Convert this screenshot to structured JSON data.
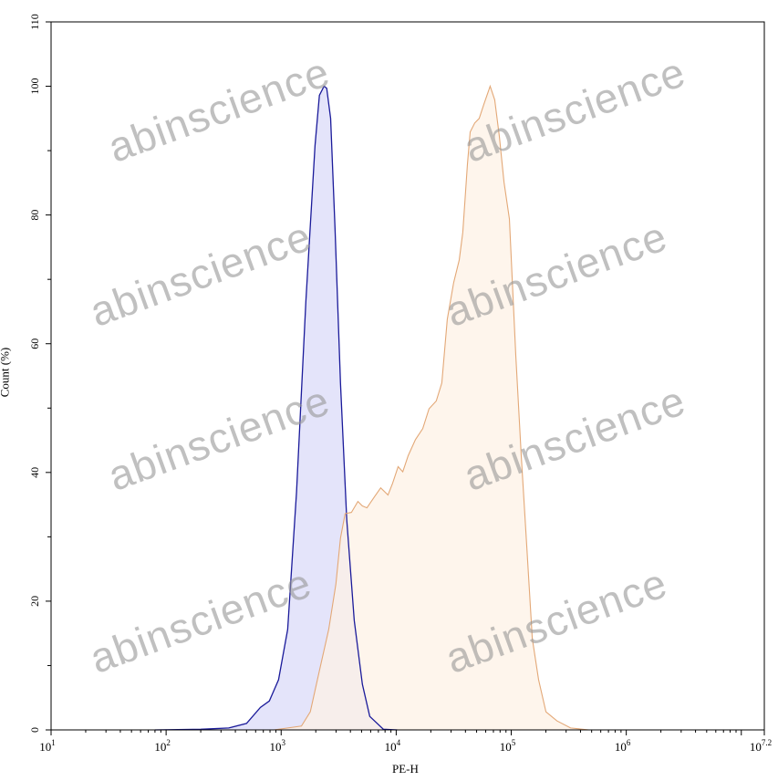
{
  "chart_data": {
    "type": "area",
    "xlabel": "PE-H",
    "ylabel": "Count (%)",
    "xscale": "log",
    "xlim": [
      10,
      15848932
    ],
    "ylim": [
      0,
      110
    ],
    "x_tick_base": "10",
    "x_tick_exponents": [
      "1",
      "2",
      "3",
      "4",
      "5",
      "6",
      "7.2"
    ],
    "y_ticks": [
      "0",
      "20",
      "40",
      "60",
      "80",
      "100",
      "110"
    ],
    "grid": false,
    "legend": "none",
    "series": [
      {
        "color": "#1a1a9a",
        "fill": "#e4e4fa",
        "x": [
          80,
          200,
          350,
          500,
          660,
          790,
          950,
          1140,
          1360,
          1640,
          1970,
          2150,
          2360,
          2490,
          2690,
          2940,
          3280,
          3720,
          4320,
          5080,
          5890,
          7740,
          10200
        ],
        "y": [
          0,
          0.1,
          0.3,
          1.0,
          3.5,
          4.5,
          7.8,
          15.6,
          36.9,
          66.7,
          90.8,
          98.6,
          100,
          99.7,
          95.0,
          78.0,
          53.9,
          32.6,
          17.0,
          7.1,
          2.1,
          0.1,
          0
        ]
      },
      {
        "color": "#e3a877",
        "fill": "#fdf1e6",
        "x": [
          865,
          1500,
          1790,
          2150,
          2590,
          2990,
          3280,
          3600,
          4080,
          4650,
          5080,
          5570,
          6460,
          7330,
          8490,
          9290,
          10400,
          11400,
          12700,
          14700,
          17000,
          19300,
          22300,
          24900,
          27800,
          31600,
          35300,
          37900,
          41600,
          44000,
          48200,
          52700,
          57800,
          65600,
          71900,
          78900,
          86500,
          96400,
          109600,
          122200,
          136500,
          152400,
          173000,
          200400,
          249500,
          328100,
          473200
        ],
        "y": [
          0,
          0.6,
          2.8,
          9.2,
          15.6,
          22.7,
          29.8,
          33.6,
          33.8,
          35.5,
          34.8,
          34.5,
          36.2,
          37.6,
          36.5,
          38.3,
          40.9,
          40.1,
          42.6,
          45.1,
          46.8,
          49.9,
          51.1,
          53.9,
          63.8,
          69.5,
          73.0,
          77.3,
          87.9,
          92.9,
          94.3,
          95.0,
          97.2,
          100,
          97.9,
          92.2,
          85.1,
          79.4,
          58.2,
          42.6,
          28.4,
          14.2,
          7.8,
          2.8,
          1.4,
          0.3,
          0
        ]
      }
    ]
  },
  "watermark": "abinscience"
}
